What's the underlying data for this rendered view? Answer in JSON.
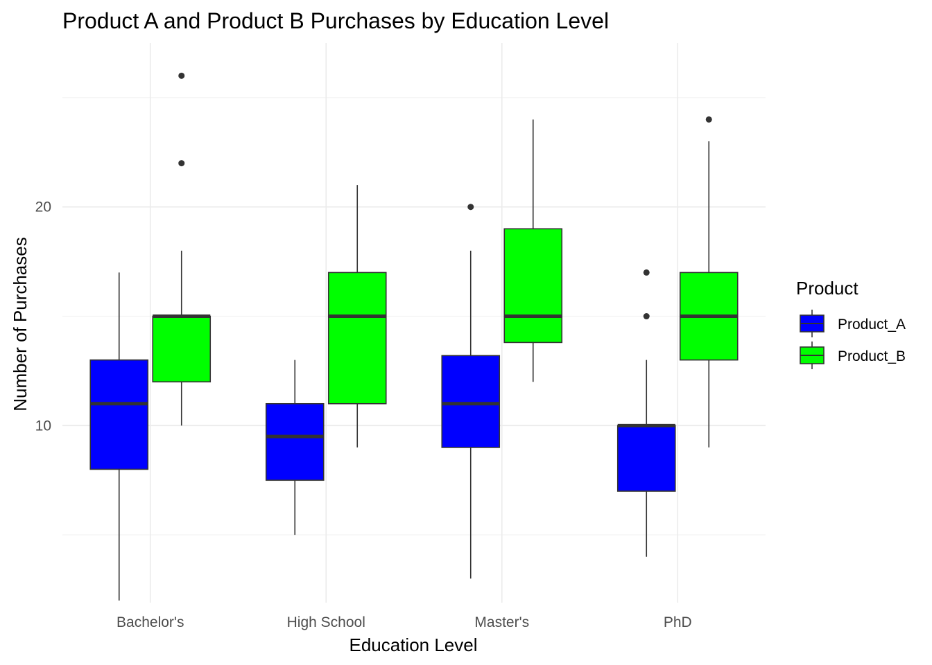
{
  "chart_data": {
    "type": "boxplot",
    "title": "Product A and Product B Purchases by Education Level",
    "xlabel": "Education Level",
    "ylabel": "Number of Purchases",
    "categories": [
      "Bachelor's",
      "High School",
      "Master's",
      "PhD"
    ],
    "y_ticks": [
      10,
      20
    ],
    "ylim": [
      1.9,
      27.5
    ],
    "grid": true,
    "legend": {
      "title": "Product",
      "position": "right"
    },
    "series": [
      {
        "name": "Product_A",
        "color": "#0000ff",
        "boxes": [
          {
            "whisker_low": 2,
            "q1": 8,
            "median": 11,
            "q3": 13,
            "whisker_high": 17,
            "outliers": []
          },
          {
            "whisker_low": 5,
            "q1": 7.5,
            "median": 9.5,
            "q3": 11,
            "whisker_high": 13,
            "outliers": []
          },
          {
            "whisker_low": 3,
            "q1": 9,
            "median": 11,
            "q3": 13.2,
            "whisker_high": 18,
            "outliers": [
              20
            ]
          },
          {
            "whisker_low": 4,
            "q1": 7,
            "median": 10,
            "q3": 10,
            "whisker_high": 13,
            "outliers": [
              15,
              17
            ]
          }
        ]
      },
      {
        "name": "Product_B",
        "color": "#00ff00",
        "boxes": [
          {
            "whisker_low": 10,
            "q1": 12,
            "median": 15,
            "q3": 15,
            "whisker_high": 18,
            "outliers": [
              22,
              26
            ]
          },
          {
            "whisker_low": 9,
            "q1": 11,
            "median": 15,
            "q3": 17,
            "whisker_high": 21,
            "outliers": []
          },
          {
            "whisker_low": 12,
            "q1": 13.8,
            "median": 15,
            "q3": 19,
            "whisker_high": 24,
            "outliers": []
          },
          {
            "whisker_low": 9,
            "q1": 13,
            "median": 15,
            "q3": 17,
            "whisker_high": 23,
            "outliers": [
              24
            ]
          }
        ]
      }
    ]
  }
}
